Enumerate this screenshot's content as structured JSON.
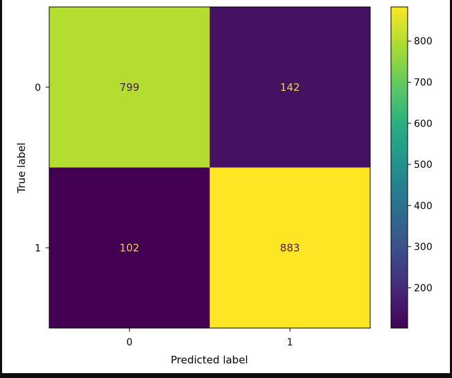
{
  "chart_data": {
    "type": "heatmap",
    "title": "",
    "xlabel": "Predicted label",
    "ylabel": "True label",
    "x_categories": [
      "0",
      "1"
    ],
    "y_categories": [
      "0",
      "1"
    ],
    "values": [
      [
        799,
        142
      ],
      [
        102,
        883
      ]
    ],
    "colormap": "viridis",
    "colorbar": {
      "range": [
        102,
        883
      ],
      "ticks": [
        200,
        300,
        400,
        500,
        600,
        700,
        800
      ]
    },
    "grid": false
  }
}
